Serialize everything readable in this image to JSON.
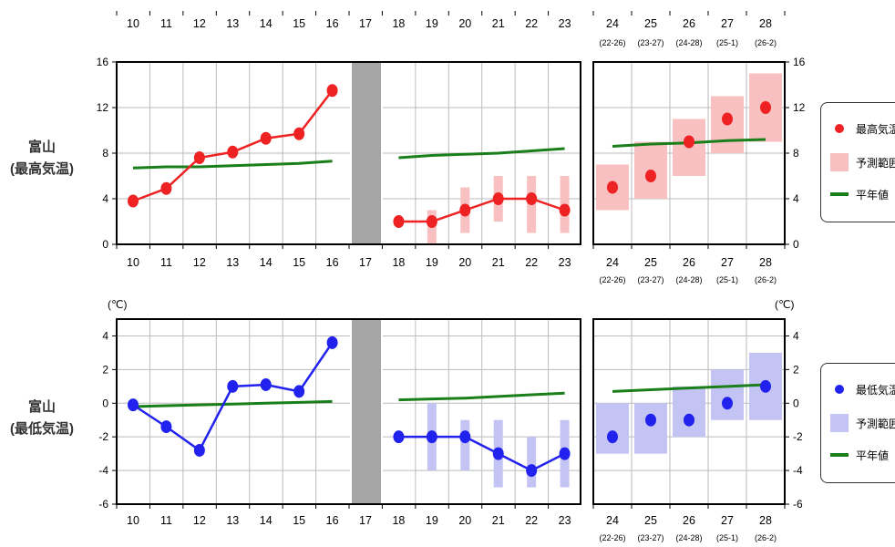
{
  "panels": [
    {
      "name": "high",
      "station_label_line1": "富山",
      "station_label_line2": "(最高気温)",
      "legend": {
        "main": "最高気温",
        "range": "予測範囲",
        "normal": "平年値"
      }
    },
    {
      "name": "low",
      "station_label_line1": "富山",
      "station_label_line2": "(最低気温)",
      "legend": {
        "main": "最低気温",
        "range": "予測範囲",
        "normal": "平年値"
      }
    }
  ],
  "unit_label": "(℃)",
  "chart_data": [
    {
      "type": "line",
      "title": "",
      "ylabel": "",
      "ylim": [
        0,
        16
      ],
      "yticks": [
        0,
        4,
        8,
        12,
        16
      ],
      "color": "#ee2222",
      "range_color": "#f8c0c0",
      "normal_color": "#1a7f1a",
      "past": {
        "x": [
          "10",
          "11",
          "12",
          "13",
          "14",
          "15",
          "16"
        ],
        "values": [
          3.8,
          4.9,
          7.6,
          8.1,
          9.3,
          9.7,
          13.5
        ],
        "normal": [
          6.7,
          6.8,
          6.8,
          6.9,
          7.0,
          7.1,
          7.3
        ]
      },
      "gap_day": "17",
      "forecast": {
        "x": [
          "18",
          "19",
          "20",
          "21",
          "22",
          "23"
        ],
        "values": [
          2,
          2,
          3,
          4,
          4,
          3
        ],
        "range": [
          null,
          [
            0,
            3
          ],
          [
            1,
            5
          ],
          [
            2,
            6
          ],
          [
            1,
            6
          ],
          [
            1,
            6
          ]
        ],
        "normal": [
          7.6,
          7.8,
          7.9,
          8.0,
          8.2,
          8.4
        ]
      },
      "weekly": {
        "x": [
          "24",
          "25",
          "26",
          "27",
          "28"
        ],
        "sublabels": [
          "(22-26)",
          "(23-27)",
          "(24-28)",
          "(25-1)",
          "(26-2)"
        ],
        "values": [
          5,
          6,
          9,
          11,
          12
        ],
        "range": [
          [
            3,
            7
          ],
          [
            4,
            9
          ],
          [
            6,
            11
          ],
          [
            8,
            13
          ],
          [
            9,
            15
          ]
        ],
        "normal": [
          8.6,
          8.8,
          8.9,
          9.1,
          9.2
        ]
      }
    },
    {
      "type": "line",
      "title": "",
      "ylabel": "",
      "ylim": [
        -6,
        5
      ],
      "yticks": [
        -6,
        -4,
        -2,
        0,
        2,
        4
      ],
      "color": "#2222ee",
      "range_color": "#c4c4f4",
      "normal_color": "#1a7f1a",
      "past": {
        "x": [
          "10",
          "11",
          "12",
          "13",
          "14",
          "15",
          "16"
        ],
        "values": [
          -0.1,
          -1.4,
          -2.8,
          1.0,
          1.1,
          0.7,
          3.6
        ],
        "normal": [
          -0.2,
          -0.15,
          -0.1,
          -0.05,
          0.0,
          0.05,
          0.1
        ]
      },
      "gap_day": "17",
      "forecast": {
        "x": [
          "18",
          "19",
          "20",
          "21",
          "22",
          "23"
        ],
        "values": [
          -2,
          -2,
          -2,
          -3,
          -4,
          -3
        ],
        "range": [
          null,
          [
            -4,
            0
          ],
          [
            -4,
            -1
          ],
          [
            -5,
            -1
          ],
          [
            -5,
            -2
          ],
          [
            -5,
            -1
          ]
        ],
        "normal": [
          0.2,
          0.25,
          0.3,
          0.4,
          0.5,
          0.6
        ]
      },
      "weekly": {
        "x": [
          "24",
          "25",
          "26",
          "27",
          "28"
        ],
        "sublabels": [
          "(22-26)",
          "(23-27)",
          "(24-28)",
          "(25-1)",
          "(26-2)"
        ],
        "values": [
          -2,
          -1,
          -1,
          0,
          1
        ],
        "range": [
          [
            -3,
            0
          ],
          [
            -3,
            0
          ],
          [
            -2,
            1
          ],
          [
            -1,
            2
          ],
          [
            -1,
            3
          ]
        ],
        "normal": [
          0.7,
          0.8,
          0.9,
          1.0,
          1.1
        ]
      }
    }
  ]
}
